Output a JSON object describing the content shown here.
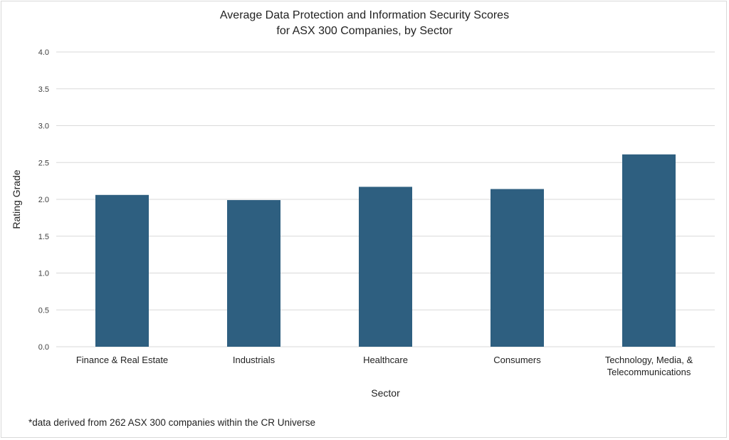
{
  "chart_data": {
    "type": "bar",
    "title_lines": [
      "Average Data Protection and Information Security  Scores",
      "for ASX 300 Companies, by Sector"
    ],
    "xlabel": "Sector",
    "ylabel": "Rating Grade",
    "ylim": [
      0,
      4
    ],
    "yticks": [
      "0.0",
      "0.5",
      "1.0",
      "1.5",
      "2.0",
      "2.5",
      "3.0",
      "3.5",
      "4.0"
    ],
    "ytick_values": [
      0,
      0.5,
      1,
      1.5,
      2,
      2.5,
      3,
      3.5,
      4
    ],
    "categories": [
      [
        "Finance & Real Estate"
      ],
      [
        "Industrials"
      ],
      [
        "Healthcare"
      ],
      [
        "Consumers"
      ],
      [
        "Technology, Media, &",
        "Telecommunications"
      ]
    ],
    "values": [
      2.06,
      1.99,
      2.17,
      2.14,
      2.61
    ],
    "grid": true,
    "legend": "none",
    "bar_color": "#2e5f80",
    "grid_color": "#d9d9d9"
  },
  "footnote": "*data derived from 262 ASX 300 companies within the CR Universe"
}
